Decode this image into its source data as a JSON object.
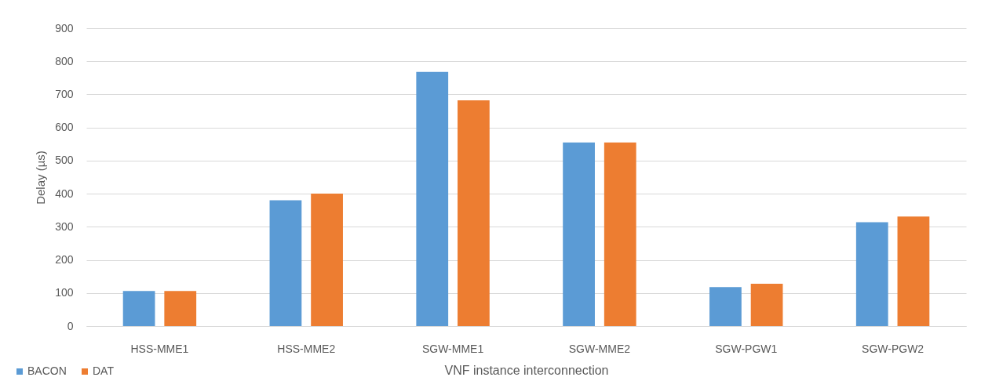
{
  "chart_data": {
    "type": "bar",
    "xlabel": "VNF instance interconnection",
    "ylabel": "Delay (µs)",
    "categories": [
      "HSS-MME1",
      "HSS-MME2",
      "SGW-MME1",
      "SGW-MME2",
      "SGW-PGW1",
      "SGW-PGW2"
    ],
    "series": [
      {
        "name": "BACON",
        "color": "#5b9bd5",
        "values": [
          106,
          380,
          768,
          555,
          118,
          314
        ]
      },
      {
        "name": "DAT",
        "color": "#ed7d31",
        "values": [
          106,
          400,
          682,
          555,
          128,
          331
        ]
      }
    ],
    "ylim": [
      0,
      900
    ],
    "yticks": [
      0,
      100,
      200,
      300,
      400,
      500,
      600,
      700,
      800,
      900
    ],
    "grid": "y",
    "legend": "bottom left"
  }
}
